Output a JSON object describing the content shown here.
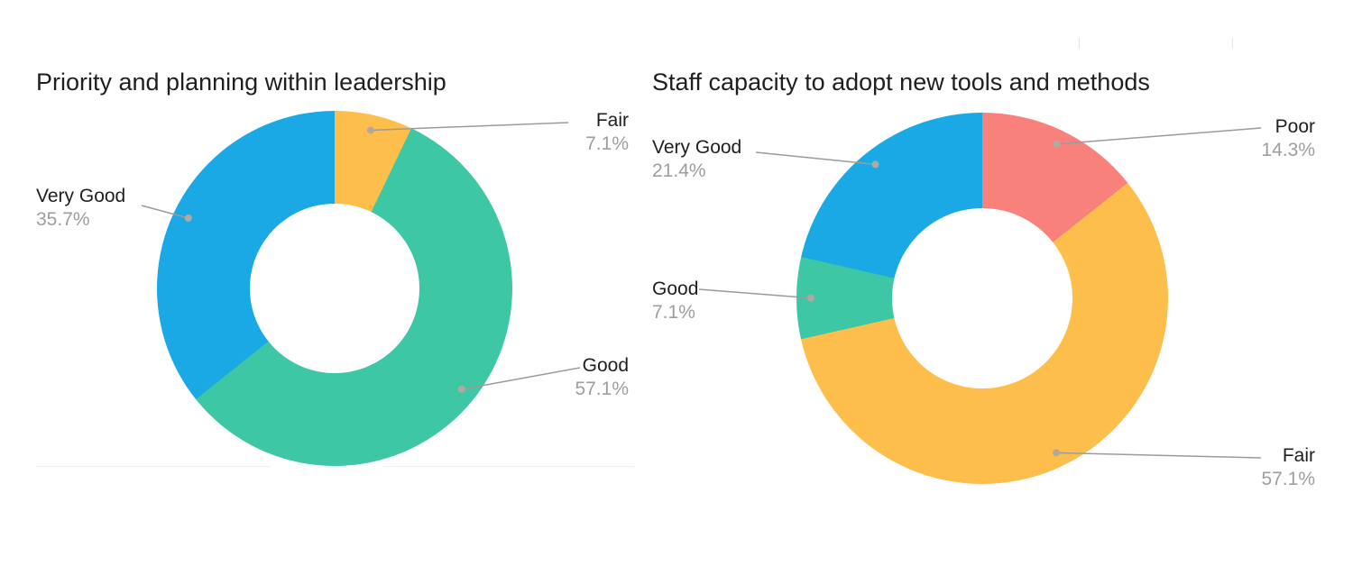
{
  "page": {
    "background_color": "#ffffff"
  },
  "style": {
    "label_name_color": "#1f1f1f",
    "label_pct_color": "#9e9e9e",
    "leader_line_color": "#9b9b9b",
    "leader_dot_color": "#b3a89f"
  },
  "chart_data": [
    {
      "type": "pie",
      "variant": "donut",
      "title": "Priority and planning within leadership",
      "unit": "%",
      "direction": "clockwise",
      "start_angle_deg": 0,
      "hole_ratio": 0.48,
      "legend": "none",
      "label_style": "outside-leader-lines",
      "slices": [
        {
          "label": "Fair",
          "value": 7.1,
          "display": "7.1%",
          "color": "#FDBE4B"
        },
        {
          "label": "Good",
          "value": 57.1,
          "display": "57.1%",
          "color": "#3DC7A4"
        },
        {
          "label": "Very Good",
          "value": 35.7,
          "display": "35.7%",
          "color": "#1AA9E5"
        }
      ]
    },
    {
      "type": "pie",
      "variant": "donut",
      "title": "Staff capacity to adopt new tools and methods",
      "unit": "%",
      "direction": "clockwise",
      "start_angle_deg": 0,
      "hole_ratio": 0.48,
      "legend": "none",
      "label_style": "outside-leader-lines",
      "slices": [
        {
          "label": "Poor",
          "value": 14.3,
          "display": "14.3%",
          "color": "#F9817B"
        },
        {
          "label": "Fair",
          "value": 57.1,
          "display": "57.1%",
          "color": "#FDBE4B"
        },
        {
          "label": "Good",
          "value": 7.1,
          "display": "7.1%",
          "color": "#3DC7A4"
        },
        {
          "label": "Very Good",
          "value": 21.4,
          "display": "21.4%",
          "color": "#1AA9E5"
        }
      ]
    }
  ]
}
